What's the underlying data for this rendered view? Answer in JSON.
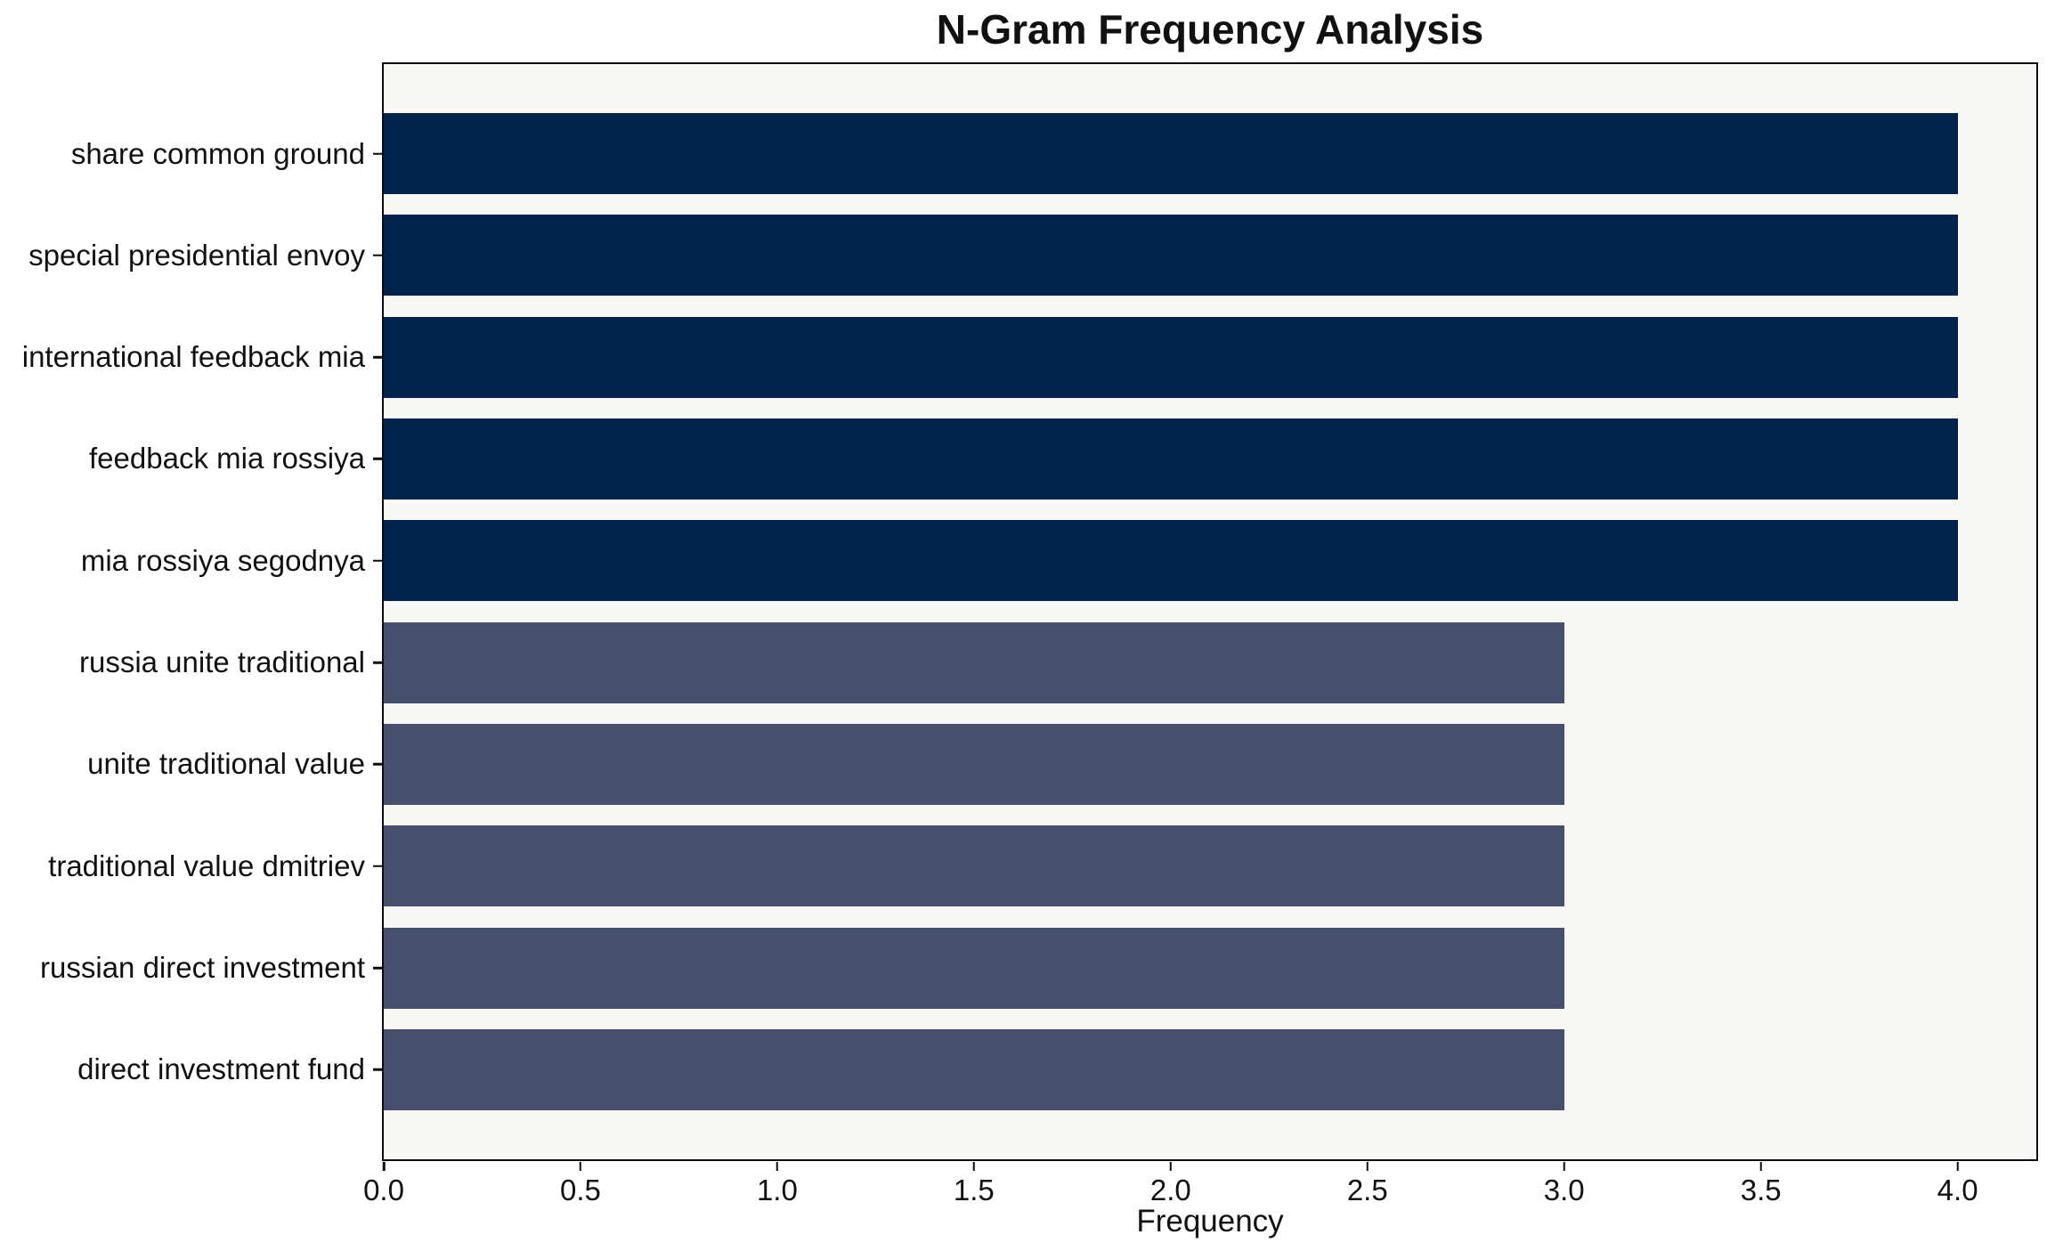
{
  "chart_data": {
    "type": "bar",
    "orientation": "horizontal",
    "title": "N-Gram Frequency Analysis",
    "xlabel": "Frequency",
    "ylabel": "",
    "categories": [
      "share common ground",
      "special presidential envoy",
      "international feedback mia",
      "feedback mia rossiya",
      "mia rossiya segodnya",
      "russia unite traditional",
      "unite traditional value",
      "traditional value dmitriev",
      "russian direct investment",
      "direct investment fund"
    ],
    "values": [
      4,
      4,
      4,
      4,
      4,
      3,
      3,
      3,
      3,
      3
    ],
    "bar_colors": [
      "#02234c",
      "#02234c",
      "#02234c",
      "#02234c",
      "#02234c",
      "#46506e",
      "#46506e",
      "#46506e",
      "#46506e",
      "#46506e"
    ],
    "xlim": [
      0,
      4.2
    ],
    "xticks": [
      {
        "value": 0.0,
        "label": "0.0"
      },
      {
        "value": 0.5,
        "label": "0.5"
      },
      {
        "value": 1.0,
        "label": "1.0"
      },
      {
        "value": 1.5,
        "label": "1.5"
      },
      {
        "value": 2.0,
        "label": "2.0"
      },
      {
        "value": 2.5,
        "label": "2.5"
      },
      {
        "value": 3.0,
        "label": "3.0"
      },
      {
        "value": 3.5,
        "label": "3.5"
      },
      {
        "value": 4.0,
        "label": "4.0"
      }
    ],
    "grid": false,
    "legend": null,
    "colors": {
      "bar_high": "#02234c",
      "bar_low": "#46506e",
      "plot_bg": "#f7f7f6",
      "figure_bg": "#ffffff",
      "spine": "#0d0d0d",
      "text": "#111111"
    }
  }
}
